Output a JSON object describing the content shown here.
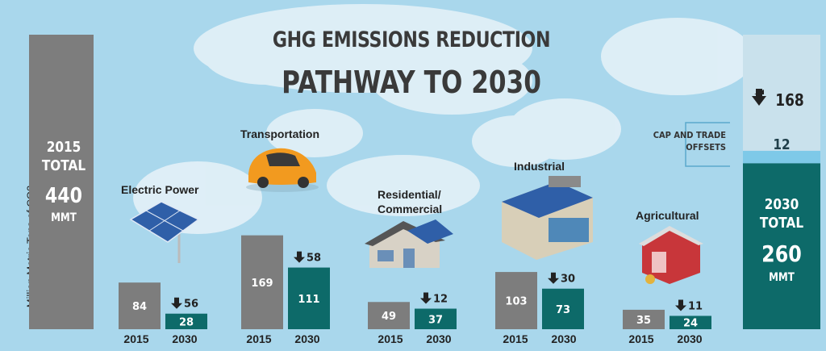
{
  "title_line1": "GHG EMISSIONS REDUCTION",
  "title_line2": "PATHWAY TO 2030",
  "ylabel": "Million Metric Tons of CO2",
  "total_2015": {
    "year": "2015",
    "word": "TOTAL",
    "value": "440",
    "unit": "MMT"
  },
  "total_2030": {
    "year": "2030",
    "word": "TOTAL",
    "value": "260",
    "unit": "MMT"
  },
  "cap_and_trade": {
    "label_line1": "CAP AND TRADE",
    "label_line2": "OFFSETS",
    "value": "12"
  },
  "reduction_total": "168",
  "colors": {
    "bar_2015": "#7d7d7d",
    "bar_2030": "#0d6a69",
    "offsets": "#7ec9e8",
    "reduction": "#c9e1ec",
    "background": "#a9d7ec",
    "total_2015_bar": "#7d7d7d"
  },
  "chart_data": {
    "type": "bar",
    "title": "GHG EMISSIONS REDUCTION PATHWAY TO 2030",
    "ylabel": "Million Metric Tons of CO2",
    "unit": "MMT",
    "totals": {
      "2015": 440,
      "2030": 260,
      "reduction": 168,
      "cap_and_trade_offsets": 12
    },
    "categories": [
      "Electric Power",
      "Transportation",
      "Residential/ Commercial",
      "Industrial",
      "Agricultural"
    ],
    "series": [
      {
        "name": "2015",
        "values": [
          84,
          169,
          49,
          103,
          35
        ]
      },
      {
        "name": "2030",
        "values": [
          28,
          111,
          37,
          73,
          24
        ]
      }
    ],
    "reductions": [
      56,
      58,
      12,
      30,
      11
    ]
  }
}
